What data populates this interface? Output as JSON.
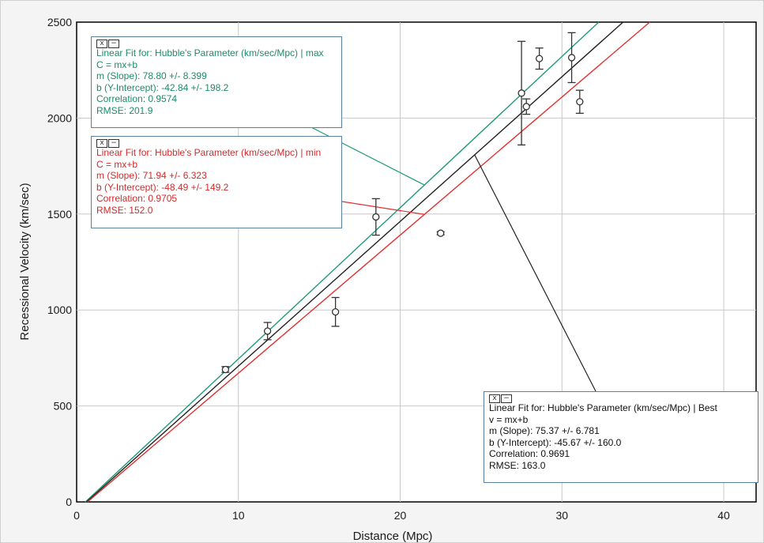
{
  "chart_data": {
    "type": "scatter",
    "xlabel": "Distance (Mpc)",
    "ylabel": "Recessional Velocity (km/sec)",
    "xlim": [
      0,
      42
    ],
    "ylim": [
      0,
      2500
    ],
    "xticks": [
      0,
      10,
      20,
      30,
      40
    ],
    "yticks": [
      0,
      500,
      1000,
      1500,
      2000,
      2500
    ],
    "grid": true,
    "points": [
      {
        "x": 9.2,
        "y": 690,
        "err": 15
      },
      {
        "x": 11.8,
        "y": 890,
        "err": 45
      },
      {
        "x": 16.0,
        "y": 990,
        "err": 75
      },
      {
        "x": 18.5,
        "y": 1485,
        "err": 95
      },
      {
        "x": 22.5,
        "y": 1400,
        "err": 8
      },
      {
        "x": 27.5,
        "y": 2130,
        "err": 270
      },
      {
        "x": 27.8,
        "y": 2060,
        "err": 40
      },
      {
        "x": 28.6,
        "y": 2310,
        "err": 55
      },
      {
        "x": 30.6,
        "y": 2315,
        "err": 130
      },
      {
        "x": 31.1,
        "y": 2085,
        "err": 60
      }
    ],
    "fits": [
      {
        "key": "max",
        "slope": 78.8,
        "intercept": -42.84,
        "color": "#1e9a7a"
      },
      {
        "key": "best",
        "slope": 75.37,
        "intercept": -45.67,
        "color": "#222222"
      },
      {
        "key": "min",
        "slope": 71.94,
        "intercept": -48.49,
        "color": "#e03030"
      }
    ]
  },
  "boxes": {
    "max": {
      "controls": [
        "x",
        "−"
      ],
      "title": "Linear Fit for:  Hubble's Parameter (km/sec/Mpc) | max",
      "equation": "C = mx+b",
      "slope": "m (Slope): 78.80 +/- 8.399",
      "intercept": "b (Y-Intercept): -42.84 +/- 198.2",
      "correlation": "Correlation: 0.9574",
      "rmse": "RMSE: 201.9"
    },
    "min": {
      "controls": [
        "x",
        "−"
      ],
      "title": "Linear Fit for:  Hubble's Parameter (km/sec/Mpc) | min",
      "equation": "C = mx+b",
      "slope": "m (Slope): 71.94 +/- 6.323",
      "intercept": "b (Y-Intercept): -48.49 +/- 149.2",
      "correlation": "Correlation: 0.9705",
      "rmse": "RMSE: 152.0"
    },
    "best": {
      "controls": [
        "x",
        "−"
      ],
      "title": "Linear Fit for:  Hubble's Parameter (km/sec/Mpc) | Best",
      "equation": "v = mx+b",
      "slope": "m (Slope): 75.37 +/- 6.781",
      "intercept": "b (Y-Intercept): -45.67 +/- 160.0",
      "correlation": "Correlation: 0.9691",
      "rmse": "RMSE: 163.0"
    }
  }
}
